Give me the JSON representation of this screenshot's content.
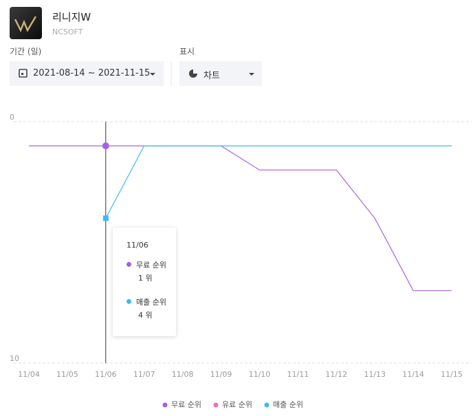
{
  "header": {
    "app_name": "리니지W",
    "developer": "NCSOFT",
    "period_label": "기간 (일)",
    "period_value": "2021-08-14 ~ 2021-11-15",
    "display_label": "표시",
    "display_value": "차트"
  },
  "chart_data": {
    "type": "line",
    "categories": [
      "11/04",
      "11/05",
      "11/06",
      "11/07",
      "11/08",
      "11/09",
      "11/10",
      "11/11",
      "11/12",
      "11/13",
      "11/14",
      "11/15"
    ],
    "series": [
      {
        "name": "무료 순위",
        "color": "#a55ee8",
        "values": [
          1,
          1,
          1,
          1,
          1,
          1,
          2,
          2,
          2,
          4,
          7,
          7
        ]
      },
      {
        "name": "유료 순위",
        "color": "#f06bbd",
        "values": [
          null,
          null,
          null,
          null,
          null,
          null,
          null,
          null,
          null,
          null,
          null,
          null
        ]
      },
      {
        "name": "매출 순위",
        "color": "#3bbbee",
        "values": [
          null,
          null,
          4,
          1,
          1,
          1,
          1,
          1,
          1,
          1,
          1,
          1
        ]
      }
    ],
    "ylim": [
      0,
      10
    ],
    "yticks": [
      0,
      10
    ],
    "y_inverted": true,
    "grid": true,
    "legend": "bottom"
  },
  "tooltip": {
    "title": "11/06",
    "entries": [
      {
        "label": "무료 순위",
        "value": "1 위"
      },
      {
        "label": "매출 순위",
        "value": "4 위"
      }
    ]
  }
}
